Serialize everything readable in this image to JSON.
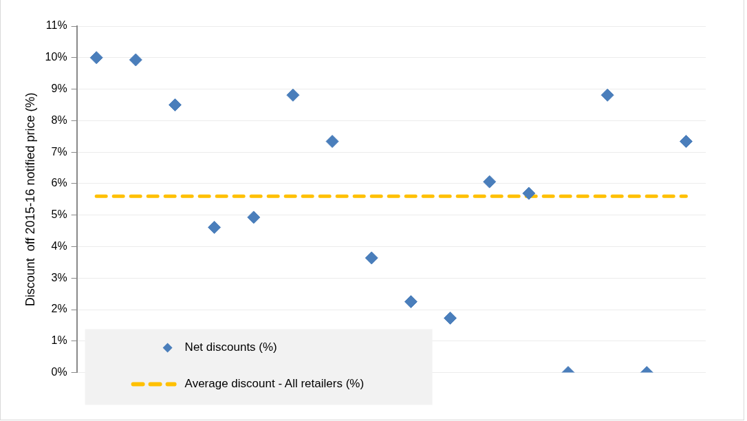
{
  "chart_data": {
    "type": "scatter",
    "ylabel": "Discount  off 2015-16 notified price (%)",
    "categories": [
      null,
      null,
      null,
      null,
      null,
      null,
      null,
      null,
      null,
      null,
      null,
      null,
      null,
      null,
      null,
      null
    ],
    "series": [
      {
        "name": "Net discounts (%)",
        "marker": "diamond",
        "color": "#4a7ebb",
        "values": [
          10.0,
          9.93,
          8.5,
          4.61,
          4.93,
          8.81,
          7.34,
          3.64,
          2.25,
          1.73,
          6.06,
          5.69,
          0,
          8.81,
          0,
          7.34
        ]
      },
      {
        "name": "Average discount - All retailers (%)",
        "type": "line",
        "marker": "none",
        "line_style": "dashed",
        "color": "#ffc000",
        "values": [
          5.6,
          5.6,
          5.6,
          5.6,
          5.6,
          5.6,
          5.6,
          5.6,
          5.6,
          5.6,
          5.6,
          5.6,
          5.6,
          5.6,
          5.6,
          5.6
        ]
      }
    ],
    "ylim": [
      0,
      11
    ],
    "yticks": [
      {
        "value": 0,
        "label": "0%"
      },
      {
        "value": 1,
        "label": "1%"
      },
      {
        "value": 2,
        "label": "2%"
      },
      {
        "value": 3,
        "label": "3%"
      },
      {
        "value": 4,
        "label": "4%"
      },
      {
        "value": 5,
        "label": "5%"
      },
      {
        "value": 6,
        "label": "6%"
      },
      {
        "value": 7,
        "label": "7%"
      },
      {
        "value": 8,
        "label": "8%"
      },
      {
        "value": 9,
        "label": "9%"
      },
      {
        "value": 10,
        "label": "10%"
      },
      {
        "value": 11,
        "label": "11%"
      }
    ],
    "grid": "y",
    "legend": "bottom left"
  }
}
